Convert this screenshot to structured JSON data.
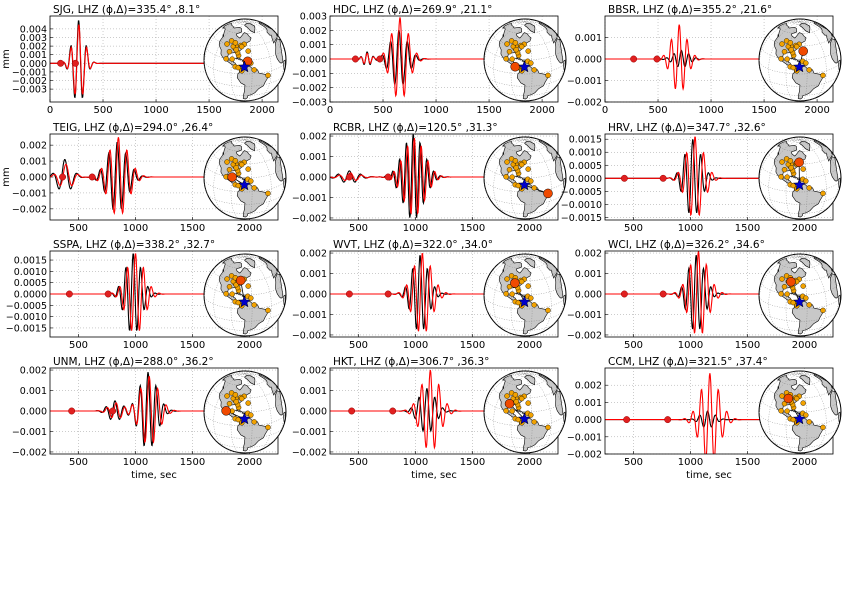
{
  "figure": {
    "ylabel": "mm",
    "xlabel": "time, sec",
    "colors": {
      "observed": "#000000",
      "synthetic": "#ff0000",
      "grid": "#9a9a9a",
      "land": "#c8c8c8",
      "station_dot": "#f2a200",
      "selected_station": "#f04a00",
      "source_star": "#0000cc",
      "phase_marker": "#e02020"
    }
  },
  "chart_data": [
    {
      "type": "line",
      "station": "SJG",
      "title": "SJG, LHZ (ϕ,Δ)=335.4° ,8.1°",
      "xlim": [
        0,
        2150
      ],
      "xticks": [
        0,
        500,
        1000,
        1500,
        2000
      ],
      "tick_labels_x": [
        "0",
        "500",
        "1000",
        "1500",
        "2000"
      ],
      "ylim": [
        -0.0045,
        0.0055
      ],
      "yticks": [
        -0.003,
        -0.002,
        -0.001,
        0,
        0.001,
        0.002,
        0.003,
        0.004
      ],
      "tick_labels_y": [
        "−0.003",
        "−0.002",
        "−0.001",
        "0.000",
        "0.001",
        "0.002",
        "0.003",
        "0.004"
      ],
      "show_ylabel": true,
      "show_xlabel": false,
      "grid": true,
      "markers": [
        100,
        240
      ],
      "series": [
        {
          "role": "observed",
          "packets": [
            {
              "t": 270,
              "amp": 0.005,
              "period": 75,
              "width": 55
            }
          ]
        },
        {
          "role": "synthetic",
          "packets": [
            {
              "t": 272,
              "amp": 0.0045,
              "period": 75,
              "width": 55
            }
          ]
        }
      ],
      "map": {
        "station": [
          -66.1,
          18.1
        ]
      }
    },
    {
      "type": "line",
      "station": "HDC",
      "title": "HDC, LHZ (ϕ,Δ)=269.9° ,21.1°",
      "xlim": [
        0,
        2150
      ],
      "xticks": [
        0,
        500,
        1000,
        1500,
        2000
      ],
      "tick_labels_x": [
        "0",
        "500",
        "1000",
        "1500",
        "2000"
      ],
      "ylim": [
        -0.003,
        0.003
      ],
      "yticks": [
        -0.003,
        -0.002,
        -0.001,
        0,
        0.001,
        0.002,
        0.003
      ],
      "tick_labels_y": [
        "−0.003",
        "−0.002",
        "−0.001",
        "0.000",
        "0.001",
        "0.002",
        "0.003"
      ],
      "show_ylabel": false,
      "show_xlabel": false,
      "grid": true,
      "markers": [
        240,
        470
      ],
      "series": [
        {
          "role": "observed",
          "packets": [
            {
              "t": 350,
              "amp": 0.0005,
              "period": 60,
              "width": 40
            },
            {
              "t": 650,
              "amp": 0.002,
              "period": 80,
              "width": 80
            }
          ]
        },
        {
          "role": "synthetic",
          "packets": [
            {
              "t": 350,
              "amp": 0.0004,
              "period": 60,
              "width": 40
            },
            {
              "t": 660,
              "amp": 0.0029,
              "period": 80,
              "width": 80
            }
          ]
        }
      ],
      "map": {
        "station": [
          -84.1,
          10.0
        ]
      }
    },
    {
      "type": "line",
      "station": "BBSR",
      "title": "BBSR, LHZ (ϕ,Δ)=355.2° ,21.6°",
      "xlim": [
        0,
        2150
      ],
      "xticks": [
        0,
        500,
        1000,
        1500,
        2000
      ],
      "tick_labels_x": [
        "0",
        "500",
        "1000",
        "1500",
        "2000"
      ],
      "ylim": [
        -0.002,
        0.002
      ],
      "yticks": [
        -0.002,
        -0.001,
        0,
        0.001
      ],
      "tick_labels_y": [
        "−0.002",
        "−0.001",
        "0.000",
        "0.001"
      ],
      "show_ylabel": false,
      "show_xlabel": false,
      "grid": true,
      "markers": [
        270,
        490
      ],
      "series": [
        {
          "role": "observed",
          "packets": [
            {
              "t": 720,
              "amp": 0.0004,
              "period": 70,
              "width": 70
            }
          ]
        },
        {
          "role": "synthetic",
          "packets": [
            {
              "t": 700,
              "amp": 0.0016,
              "period": 75,
              "width": 70
            }
          ]
        }
      ],
      "map": {
        "station": [
          -64.7,
          32.4
        ]
      }
    },
    {
      "type": "line",
      "station": "TEIG",
      "title": "TEIG, LHZ (ϕ,Δ)=294.0° ,26.4°",
      "xlim": [
        250,
        2250
      ],
      "xticks": [
        500,
        1000,
        1500,
        2000
      ],
      "tick_labels_x": [
        "500",
        "1000",
        "1500",
        "2000"
      ],
      "ylim": [
        -0.0027,
        0.0027
      ],
      "yticks": [
        -0.002,
        -0.001,
        0,
        0.001,
        0.002
      ],
      "tick_labels_y": [
        "−0.002",
        "−0.001",
        "0.000",
        "0.001",
        "0.002"
      ],
      "show_ylabel": true,
      "show_xlabel": false,
      "grid": true,
      "markers": [
        360,
        620
      ],
      "series": [
        {
          "role": "observed",
          "packets": [
            {
              "t": 380,
              "amp": 0.0011,
              "period": 110,
              "width": 60
            },
            {
              "t": 840,
              "amp": 0.0022,
              "period": 75,
              "width": 85
            }
          ]
        },
        {
          "role": "synthetic",
          "packets": [
            {
              "t": 390,
              "amp": 0.0008,
              "period": 110,
              "width": 60
            },
            {
              "t": 850,
              "amp": 0.0025,
              "period": 75,
              "width": 85
            }
          ]
        }
      ],
      "map": {
        "station": [
          -89.5,
          20.2
        ]
      }
    },
    {
      "type": "line",
      "station": "RCBR",
      "title": "RCBR, LHZ (ϕ,Δ)=120.5° ,31.3°",
      "xlim": [
        250,
        2250
      ],
      "xticks": [
        500,
        1000,
        1500,
        2000
      ],
      "tick_labels_x": [
        "500",
        "1000",
        "1500",
        "2000"
      ],
      "ylim": [
        -0.0021,
        0.0021
      ],
      "yticks": [
        -0.002,
        -0.001,
        0,
        0.001,
        0.002
      ],
      "tick_labels_y": [
        "−0.002",
        "−0.001",
        "0.000",
        "0.001",
        "0.002"
      ],
      "show_ylabel": false,
      "show_xlabel": false,
      "grid": true,
      "markers": [
        420,
        760
      ],
      "series": [
        {
          "role": "observed",
          "packets": [
            {
              "t": 420,
              "amp": 0.0003,
              "period": 100,
              "width": 80
            },
            {
              "t": 980,
              "amp": 0.0021,
              "period": 60,
              "width": 90
            }
          ]
        },
        {
          "role": "synthetic",
          "packets": [
            {
              "t": 430,
              "amp": 0.0002,
              "period": 100,
              "width": 80
            },
            {
              "t": 990,
              "amp": 0.0019,
              "period": 60,
              "width": 90
            }
          ]
        }
      ],
      "map": {
        "station": [
          -35.7,
          -5.8
        ]
      }
    },
    {
      "type": "line",
      "station": "HRV",
      "title": "HRV, LHZ (ϕ,Δ)=347.7° ,32.6°",
      "xlim": [
        250,
        2250
      ],
      "xticks": [
        500,
        1000,
        1500,
        2000
      ],
      "tick_labels_x": [
        "500",
        "1000",
        "1500",
        "2000"
      ],
      "ylim": [
        -0.0016,
        0.0017
      ],
      "yticks": [
        -0.0015,
        -0.001,
        -0.0005,
        0,
        0.0005,
        0.001,
        0.0015
      ],
      "tick_labels_y": [
        "−0.0015",
        "−0.0010",
        "−0.0005",
        "0.0000",
        "0.0005",
        "0.0010",
        "0.0015"
      ],
      "show_ylabel": false,
      "show_xlabel": false,
      "grid": true,
      "markers": [
        420,
        760
      ],
      "series": [
        {
          "role": "observed",
          "packets": [
            {
              "t": 1020,
              "amp": 0.0015,
              "period": 70,
              "width": 70
            }
          ]
        },
        {
          "role": "synthetic",
          "packets": [
            {
              "t": 1040,
              "amp": 0.0016,
              "period": 75,
              "width": 75
            }
          ]
        }
      ],
      "map": {
        "station": [
          -71.6,
          42.5
        ]
      }
    },
    {
      "type": "line",
      "station": "SSPA",
      "title": "SSPA, LHZ (ϕ,Δ)=338.2° ,32.7°",
      "xlim": [
        250,
        2250
      ],
      "xticks": [
        500,
        1000,
        1500,
        2000
      ],
      "tick_labels_x": [
        "500",
        "1000",
        "1500",
        "2000"
      ],
      "ylim": [
        -0.0019,
        0.0019
      ],
      "yticks": [
        -0.0015,
        -0.001,
        -0.0005,
        0,
        0.0005,
        0.001,
        0.0015
      ],
      "tick_labels_y": [
        "−0.0015",
        "−0.0010",
        "−0.0005",
        "0.0000",
        "0.0005",
        "0.0010",
        "0.0015"
      ],
      "show_ylabel": false,
      "show_xlabel": false,
      "grid": true,
      "markers": [
        420,
        760
      ],
      "series": [
        {
          "role": "observed",
          "packets": [
            {
              "t": 980,
              "amp": 0.0018,
              "period": 65,
              "width": 70
            }
          ]
        },
        {
          "role": "synthetic",
          "packets": [
            {
              "t": 1000,
              "amp": 0.0018,
              "period": 70,
              "width": 75
            }
          ]
        }
      ],
      "map": {
        "station": [
          -77.9,
          40.6
        ]
      }
    },
    {
      "type": "line",
      "station": "WVT",
      "title": "WVT, LHZ (ϕ,Δ)=322.0° ,34.0°",
      "xlim": [
        250,
        2250
      ],
      "xticks": [
        500,
        1000,
        1500,
        2000
      ],
      "tick_labels_x": [
        "500",
        "1000",
        "1500",
        "2000"
      ],
      "ylim": [
        -0.0021,
        0.0021
      ],
      "yticks": [
        -0.002,
        -0.001,
        0,
        0.001,
        0.002
      ],
      "tick_labels_y": [
        "−0.002",
        "−0.001",
        "0.000",
        "0.001",
        "0.002"
      ],
      "show_ylabel": false,
      "show_xlabel": false,
      "grid": true,
      "markers": [
        420,
        760
      ],
      "series": [
        {
          "role": "observed",
          "packets": [
            {
              "t": 1040,
              "amp": 0.0019,
              "period": 65,
              "width": 70
            }
          ]
        },
        {
          "role": "synthetic",
          "packets": [
            {
              "t": 1060,
              "amp": 0.002,
              "period": 70,
              "width": 80
            }
          ]
        }
      ],
      "map": {
        "station": [
          -87.8,
          36.1
        ]
      }
    },
    {
      "type": "line",
      "station": "WCI",
      "title": "WCI, LHZ (ϕ,Δ)=326.2° ,34.6°",
      "xlim": [
        250,
        2250
      ],
      "xticks": [
        500,
        1000,
        1500,
        2000
      ],
      "tick_labels_x": [
        "500",
        "1000",
        "1500",
        "2000"
      ],
      "ylim": [
        -0.0021,
        0.0021
      ],
      "yticks": [
        -0.002,
        -0.001,
        0,
        0.001,
        0.002
      ],
      "tick_labels_y": [
        "−0.002",
        "−0.001",
        "0.000",
        "0.001",
        "0.002"
      ],
      "show_ylabel": false,
      "show_xlabel": false,
      "grid": true,
      "markers": [
        420,
        760
      ],
      "series": [
        {
          "role": "observed",
          "packets": [
            {
              "t": 1050,
              "amp": 0.0019,
              "period": 65,
              "width": 70
            }
          ]
        },
        {
          "role": "synthetic",
          "packets": [
            {
              "t": 1070,
              "amp": 0.0021,
              "period": 70,
              "width": 80
            }
          ]
        }
      ],
      "map": {
        "station": [
          -86.3,
          38.2
        ]
      }
    },
    {
      "type": "line",
      "station": "UNM",
      "title": "UNM, LHZ (ϕ,Δ)=288.0° ,36.2°",
      "xlim": [
        250,
        2250
      ],
      "xticks": [
        500,
        1000,
        1500,
        2000
      ],
      "tick_labels_x": [
        "500",
        "1000",
        "1500",
        "2000"
      ],
      "ylim": [
        -0.0021,
        0.0021
      ],
      "yticks": [
        -0.002,
        -0.001,
        0,
        0.001,
        0.002
      ],
      "tick_labels_y": [
        "−0.002",
        "−0.001",
        "0.000",
        "0.001",
        "0.002"
      ],
      "show_ylabel": false,
      "show_xlabel": true,
      "grid": true,
      "markers": [
        440,
        800
      ],
      "series": [
        {
          "role": "observed",
          "packets": [
            {
              "t": 820,
              "amp": 0.0005,
              "period": 80,
              "width": 60
            },
            {
              "t": 1110,
              "amp": 0.0019,
              "period": 70,
              "width": 75
            }
          ]
        },
        {
          "role": "synthetic",
          "packets": [
            {
              "t": 830,
              "amp": 0.0004,
              "period": 80,
              "width": 60
            },
            {
              "t": 1120,
              "amp": 0.0017,
              "period": 75,
              "width": 80
            }
          ]
        }
      ],
      "map": {
        "station": [
          -99.2,
          19.3
        ]
      }
    },
    {
      "type": "line",
      "station": "HKT",
      "title": "HKT, LHZ (ϕ,Δ)=306.7° ,36.3°",
      "xlim": [
        250,
        2250
      ],
      "xticks": [
        500,
        1000,
        1500,
        2000
      ],
      "tick_labels_x": [
        "500",
        "1000",
        "1500",
        "2000"
      ],
      "ylim": [
        -0.0021,
        0.0021
      ],
      "yticks": [
        -0.002,
        -0.001,
        0,
        0.001,
        0.002
      ],
      "tick_labels_y": [
        "−0.002",
        "−0.001",
        "0.000",
        "0.001",
        "0.002"
      ],
      "show_ylabel": false,
      "show_xlabel": true,
      "grid": true,
      "markers": [
        440,
        800
      ],
      "series": [
        {
          "role": "observed",
          "packets": [
            {
              "t": 1100,
              "amp": 0.0011,
              "period": 70,
              "width": 70
            }
          ]
        },
        {
          "role": "synthetic",
          "packets": [
            {
              "t": 1130,
              "amp": 0.002,
              "period": 75,
              "width": 80
            }
          ]
        }
      ],
      "map": {
        "station": [
          -95.8,
          29.9
        ]
      }
    },
    {
      "type": "line",
      "station": "CCM",
      "title": "CCM, LHZ (ϕ,Δ)=321.5° ,37.4°",
      "xlim": [
        250,
        2250
      ],
      "xticks": [
        500,
        1000,
        1500,
        2000
      ],
      "tick_labels_x": [
        "500",
        "1000",
        "1500",
        "2000"
      ],
      "ylim": [
        -0.002,
        0.003
      ],
      "yticks": [
        -0.002,
        -0.001,
        0,
        0.001,
        0.002
      ],
      "tick_labels_y": [
        "−0.002",
        "−0.001",
        "0.000",
        "0.001",
        "0.002"
      ],
      "show_ylabel": false,
      "show_xlabel": true,
      "grid": true,
      "markers": [
        440,
        800
      ],
      "series": [
        {
          "role": "observed",
          "packets": [
            {
              "t": 1150,
              "amp": 0.0005,
              "period": 70,
              "width": 60
            }
          ]
        },
        {
          "role": "synthetic",
          "packets": [
            {
              "t": 1170,
              "amp": 0.0027,
              "period": 75,
              "width": 80
            }
          ]
        }
      ],
      "map": {
        "station": [
          -91.2,
          38.1
        ]
      }
    }
  ],
  "map_common": {
    "center": [
      -70,
      20
    ],
    "source": [
      -70.8,
      10.2
    ],
    "stations": [
      [
        -66.1,
        18.1
      ],
      [
        -84.1,
        10.0
      ],
      [
        -64.7,
        32.4
      ],
      [
        -89.5,
        20.2
      ],
      [
        -35.7,
        -5.8
      ],
      [
        -71.6,
        42.5
      ],
      [
        -77.9,
        40.6
      ],
      [
        -87.8,
        36.1
      ],
      [
        -86.3,
        38.2
      ],
      [
        -99.2,
        19.3
      ],
      [
        -95.8,
        29.9
      ],
      [
        -91.2,
        38.1
      ],
      [
        -80.0,
        26.0
      ],
      [
        -74.5,
        4.6
      ],
      [
        -61.5,
        15.5
      ],
      [
        -82.0,
        30.0
      ],
      [
        -76.0,
        39.0
      ],
      [
        -105.0,
        40.0
      ],
      [
        -98.0,
        46.0
      ],
      [
        -89.0,
        44.0
      ],
      [
        -79.5,
        9.0
      ],
      [
        -57.0,
        5.5
      ],
      [
        -85.0,
        34.0
      ]
    ]
  }
}
